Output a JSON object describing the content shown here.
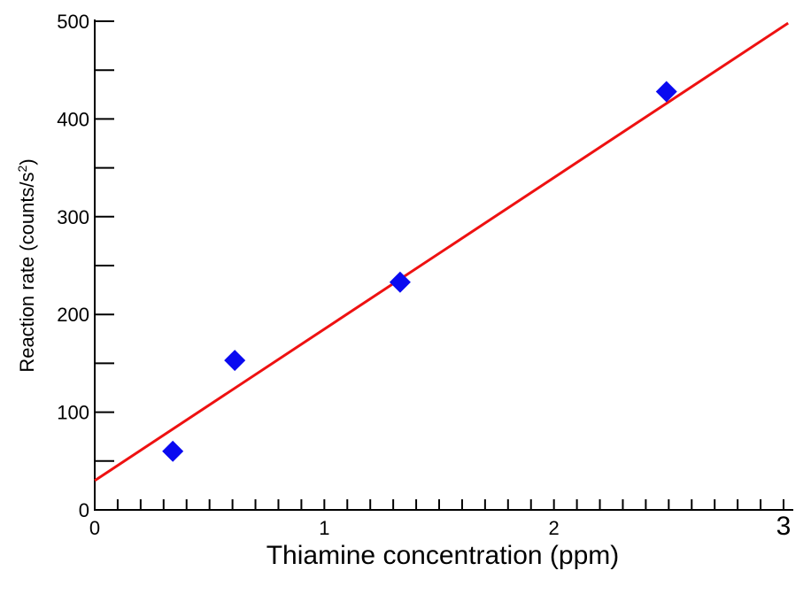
{
  "chart_data": {
    "type": "scatter",
    "title": "",
    "xlabel": "Thiamine concentration (ppm)",
    "ylabel": "Reaction rate (counts/s",
    "ylabel_superscript": "2",
    "ylabel_suffix": ")",
    "xlim": [
      0,
      3
    ],
    "ylim": [
      0,
      500
    ],
    "x_ticks": [
      "0",
      "1",
      "2",
      "3"
    ],
    "y_ticks": [
      "0",
      "100",
      "200",
      "300",
      "400",
      "500"
    ],
    "grid": false,
    "series": [
      {
        "marker": "diamond",
        "color": "#0a0af0",
        "points": [
          [
            0.34,
            60
          ],
          [
            0.61,
            153
          ],
          [
            1.33,
            233
          ],
          [
            2.49,
            428
          ]
        ]
      }
    ],
    "fit_line": {
      "color": "#ee1111",
      "intercept": 30,
      "slope": 155,
      "x_range": [
        0,
        3.02
      ]
    }
  }
}
